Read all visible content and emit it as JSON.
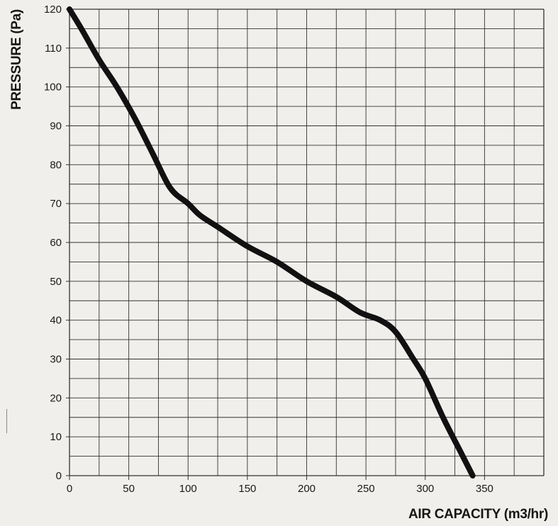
{
  "chart_data": {
    "type": "line",
    "xlabel": "AIR CAPACITY (m3/hr)",
    "ylabel": "PRESSURE (Pa)",
    "xlim": [
      0,
      400
    ],
    "ylim": [
      0,
      120
    ],
    "x_ticks": [
      0,
      50,
      100,
      150,
      200,
      250,
      300,
      350
    ],
    "y_ticks": [
      0,
      10,
      20,
      30,
      40,
      50,
      60,
      70,
      80,
      90,
      100,
      110,
      120
    ],
    "grid": true,
    "series": [
      {
        "x": [
          0,
          10,
          25,
          40,
          55,
          70,
          85,
          100,
          110,
          125,
          150,
          175,
          200,
          225,
          245,
          262,
          275,
          290,
          300,
          315,
          330,
          340
        ],
        "y": [
          120,
          115,
          107,
          100,
          92,
          83,
          74,
          70,
          67,
          64,
          59,
          55,
          50,
          46,
          42,
          40,
          37,
          30,
          25,
          15,
          6,
          0
        ]
      }
    ],
    "colors": {
      "line": "#111111",
      "grid": "#333333",
      "background": "#f0efeb"
    }
  }
}
